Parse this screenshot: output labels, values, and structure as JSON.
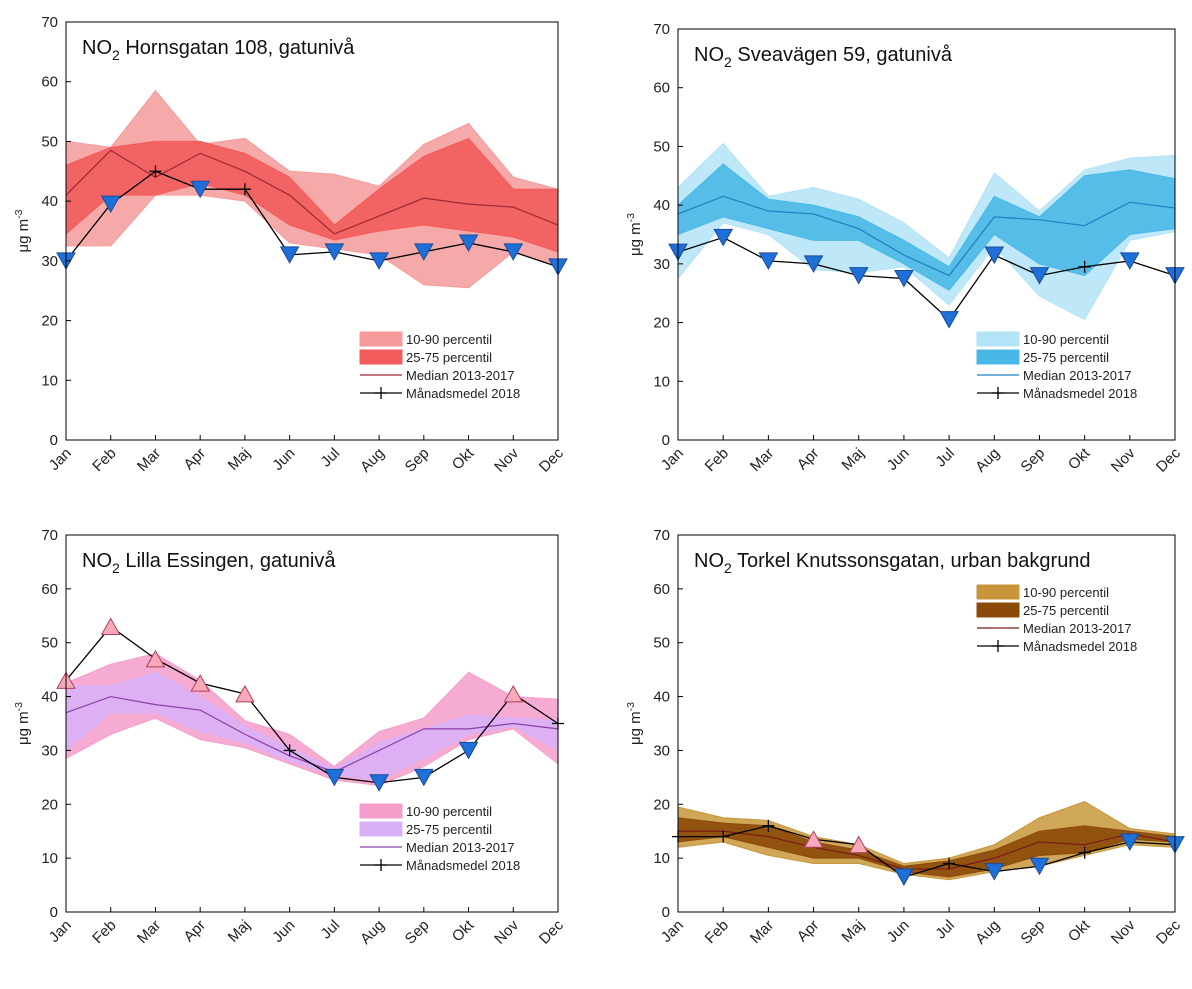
{
  "chart_data": [
    {
      "type": "band-line",
      "title": "NO2 Hornsgatan 108, gatunivå",
      "y_label": "μg m-3",
      "legend": "lower right",
      "categories": [
        "Jan",
        "Feb",
        "Mar",
        "Apr",
        "Maj",
        "Jun",
        "Jul",
        "Aug",
        "Sep",
        "Okt",
        "Nov",
        "Dec"
      ],
      "ylim": [
        0,
        70
      ],
      "yticks": [
        0,
        10,
        20,
        30,
        40,
        50,
        60,
        70
      ],
      "series": [
        {
          "name": "10-90 percentil",
          "color": "#f59a9a",
          "low": [
            32.5,
            32.5,
            41,
            41,
            40,
            33,
            32,
            31,
            26,
            25.5,
            31.5,
            29
          ],
          "high": [
            50,
            49,
            58.5,
            49.5,
            50.5,
            45,
            44.5,
            42.5,
            49.5,
            53,
            44,
            42
          ]
        },
        {
          "name": "25-75 percentil",
          "color": "#f25b5b",
          "low": [
            34.5,
            41,
            41,
            43,
            41,
            36,
            33.5,
            35,
            36,
            35,
            34,
            31.5
          ],
          "high": [
            46,
            49,
            50,
            50,
            48,
            44,
            36,
            42,
            47.5,
            50.5,
            42,
            42
          ]
        },
        {
          "name": "Median 2013-2017",
          "color": "#9b2a35",
          "values": [
            41,
            48.5,
            44,
            48,
            45,
            41,
            34.5,
            37.5,
            40.5,
            39.5,
            39,
            36
          ]
        },
        {
          "name": "Månadsmedel 2018",
          "color": "#000000",
          "below_color": "#1e6fd8",
          "above_color": "#f7a8bb",
          "values": [
            30,
            39.5,
            45,
            42,
            42,
            31,
            31.5,
            30,
            31.5,
            33,
            31.5,
            29
          ]
        }
      ]
    },
    {
      "type": "band-line",
      "title": "NO2 Sveavägen 59, gatunivå",
      "y_label": "μg m-3",
      "legend": "lower right",
      "categories": [
        "Jan",
        "Feb",
        "Mar",
        "Apr",
        "Maj",
        "Jun",
        "Jul",
        "Aug",
        "Sep",
        "Okt",
        "Nov",
        "Dec"
      ],
      "ylim": [
        0,
        70
      ],
      "yticks": [
        0,
        10,
        20,
        30,
        40,
        50,
        60,
        70
      ],
      "series": [
        {
          "name": "10-90 percentil",
          "color": "#b3e3f7",
          "low": [
            27.5,
            37,
            35,
            29,
            28.5,
            29.5,
            23,
            33,
            24.5,
            20.5,
            34,
            35.5
          ],
          "high": [
            43,
            50.5,
            41.5,
            43,
            41,
            37,
            31,
            45.5,
            39,
            46,
            48,
            48.5
          ]
        },
        {
          "name": "25-75 percentil",
          "color": "#4ab8e6",
          "low": [
            35,
            38,
            36,
            34,
            34,
            30,
            25.5,
            35,
            30,
            28,
            35,
            36
          ],
          "high": [
            40,
            47,
            41,
            40,
            38,
            34,
            29.5,
            41.5,
            38,
            45,
            46,
            44.5
          ]
        },
        {
          "name": "Median 2013-2017",
          "color": "#1a7fc0",
          "values": [
            38.5,
            41.5,
            39,
            38.5,
            36,
            31.5,
            28,
            38,
            37.5,
            36.5,
            40.5,
            39.5
          ]
        },
        {
          "name": "Månadsmedel 2018",
          "color": "#000000",
          "below_color": "#1e6fd8",
          "above_color": "#f7a8bb",
          "values": [
            32,
            34.5,
            30.5,
            30,
            28,
            27.5,
            20.5,
            31.5,
            28,
            29.5,
            30.5,
            28
          ]
        }
      ]
    },
    {
      "type": "band-line",
      "title": "NO2 Lilla Essingen, gatunivå",
      "y_label": "μg m-3",
      "legend": "lower right",
      "categories": [
        "Jan",
        "Feb",
        "Mar",
        "Apr",
        "Maj",
        "Jun",
        "Jul",
        "Aug",
        "Sep",
        "Okt",
        "Nov",
        "Dec"
      ],
      "ylim": [
        0,
        70
      ],
      "yticks": [
        0,
        10,
        20,
        30,
        40,
        50,
        60,
        70
      ],
      "series": [
        {
          "name": "10-90 percentil",
          "color": "#f59ccb",
          "low": [
            28.5,
            33,
            36,
            32,
            30.5,
            27.5,
            24.5,
            23.5,
            27,
            32,
            34,
            27.5
          ],
          "high": [
            42.5,
            46,
            48,
            43,
            35.5,
            33,
            27,
            33.5,
            36,
            44.5,
            40,
            39.5
          ]
        },
        {
          "name": "25-75 percentil",
          "color": "#d9b0f5",
          "low": [
            30,
            37,
            37,
            33.5,
            31.5,
            28,
            25.5,
            24.5,
            28.5,
            33,
            34.5,
            30
          ],
          "high": [
            42,
            42,
            44.5,
            40,
            34.5,
            30.5,
            26.5,
            31.5,
            34,
            36.5,
            36,
            35.5
          ]
        },
        {
          "name": "Median 2013-2017",
          "color": "#8a3fa8",
          "values": [
            37,
            40,
            38.5,
            37.5,
            33,
            29,
            26,
            30,
            34,
            34,
            35,
            34
          ]
        },
        {
          "name": "Månadsmedel 2018",
          "color": "#000000",
          "below_color": "#1e6fd8",
          "above_color": "#f7a8bb",
          "values": [
            43,
            53,
            47,
            42.5,
            40.5,
            30,
            25,
            24,
            25,
            30,
            40.5,
            35
          ]
        }
      ]
    },
    {
      "type": "band-line",
      "title": "NO2 Torkel Knutssonsgatan, urban bakgrund",
      "y_label": "μg m-3",
      "legend": "upper right",
      "categories": [
        "Jan",
        "Feb",
        "Mar",
        "Apr",
        "Maj",
        "Jun",
        "Jul",
        "Aug",
        "Sep",
        "Okt",
        "Nov",
        "Dec"
      ],
      "ylim": [
        0,
        70
      ],
      "yticks": [
        0,
        10,
        20,
        30,
        40,
        50,
        60,
        70
      ],
      "series": [
        {
          "name": "10-90 percentil",
          "color": "#c8963a",
          "low": [
            12,
            13,
            10.5,
            9,
            9,
            7,
            6,
            7.5,
            8.5,
            10.5,
            12.5,
            12
          ],
          "high": [
            19.5,
            17.5,
            17,
            14,
            12.5,
            9,
            10,
            12.5,
            17.5,
            20.5,
            15.5,
            14.5
          ]
        },
        {
          "name": "25-75 percentil",
          "color": "#8b4a0a",
          "low": [
            13,
            14,
            12,
            10,
            10,
            7.5,
            6.5,
            8,
            10.5,
            11,
            13.5,
            13
          ],
          "high": [
            17.5,
            16.5,
            16,
            13,
            11.5,
            8.5,
            9.5,
            11.5,
            15,
            16,
            15,
            14
          ]
        },
        {
          "name": "Median 2013-2017",
          "color": "#7a1a1a",
          "values": [
            15,
            15,
            14,
            12,
            10.5,
            8,
            8,
            10,
            13,
            12.5,
            14.5,
            13
          ]
        },
        {
          "name": "Månadsmedel 2018",
          "color": "#000000",
          "below_color": "#1e6fd8",
          "above_color": "#f7a8bb",
          "values": [
            14,
            14,
            16,
            13.5,
            12.5,
            6.5,
            9,
            7.5,
            8.5,
            11,
            13,
            12.5
          ]
        }
      ]
    }
  ]
}
